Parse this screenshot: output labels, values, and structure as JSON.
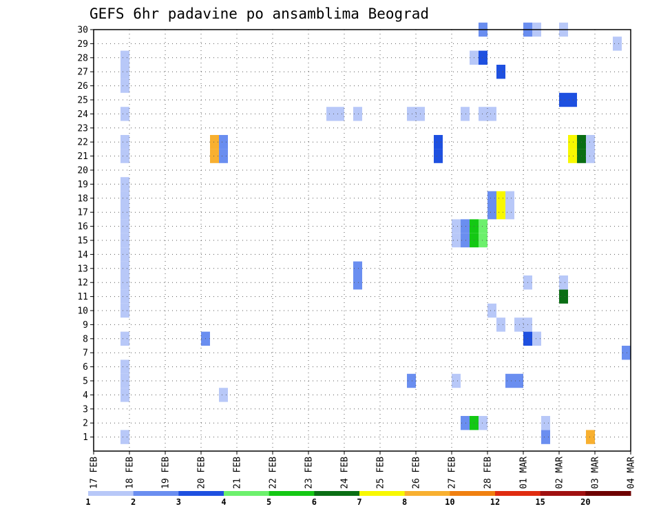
{
  "chart_data": {
    "type": "heatmap",
    "title": "GEFS 6hr padavine po ansamblima Beograd",
    "y_ticks": [
      "1",
      "2",
      "3",
      "4",
      "5",
      "6",
      "7",
      "8",
      "9",
      "10",
      "11",
      "12",
      "13",
      "14",
      "15",
      "16",
      "17",
      "18",
      "19",
      "20",
      "21",
      "22",
      "23",
      "24",
      "25",
      "26",
      "27",
      "28",
      "29",
      "30"
    ],
    "x_ticks": [
      "17 FEB",
      "18 FEB",
      "19 FEB",
      "20 FEB",
      "21 FEB",
      "22 FEB",
      "23 FEB",
      "24 FEB",
      "25 FEB",
      "26 FEB",
      "27 FEB",
      "28 FEB",
      "01 MAR",
      "02 MAR",
      "03 MAR",
      "04 MAR"
    ],
    "x_unit_note": "x values are days since 17 FEB, 6-hourly steps (0.25)",
    "ylim": [
      0,
      30
    ],
    "xlim": [
      0,
      15
    ],
    "grid": true,
    "colorbar": {
      "labels": [
        "1",
        "2",
        "3",
        "4",
        "5",
        "6",
        "7",
        "8",
        "10",
        "12",
        "15",
        "20"
      ],
      "colors": [
        "#b8c8f8",
        "#6a8ef0",
        "#1e50e0",
        "#6cf06c",
        "#14c814",
        "#0a6e14",
        "#f8f800",
        "#f8b030",
        "#f08010",
        "#e02c10",
        "#a01010",
        "#6e0000"
      ]
    },
    "cells": [
      {
        "member": 1,
        "x": 0.75,
        "c": 0
      },
      {
        "member": 1,
        "x": 12.5,
        "c": 1
      },
      {
        "member": 1,
        "x": 13.75,
        "c": 7
      },
      {
        "member": 2,
        "x": 10.25,
        "c": 1
      },
      {
        "member": 2,
        "x": 10.5,
        "c": 4
      },
      {
        "member": 2,
        "x": 10.75,
        "c": 0
      },
      {
        "member": 2,
        "x": 12.5,
        "c": 0
      },
      {
        "member": 4,
        "x": 0.75,
        "c": 0
      },
      {
        "member": 4,
        "x": 3.5,
        "c": 0
      },
      {
        "member": 5,
        "x": 0.75,
        "c": 0
      },
      {
        "member": 5,
        "x": 8.75,
        "c": 1
      },
      {
        "member": 5,
        "x": 10.0,
        "c": 0
      },
      {
        "member": 5,
        "x": 11.5,
        "c": 1
      },
      {
        "member": 5,
        "x": 11.75,
        "c": 1
      },
      {
        "member": 6,
        "x": 0.75,
        "c": 0
      },
      {
        "member": 7,
        "x": 14.75,
        "c": 1
      },
      {
        "member": 8,
        "x": 0.75,
        "c": 0
      },
      {
        "member": 8,
        "x": 3.0,
        "c": 1
      },
      {
        "member": 8,
        "x": 12.0,
        "c": 2
      },
      {
        "member": 8,
        "x": 12.25,
        "c": 0
      },
      {
        "member": 9,
        "x": 11.25,
        "c": 0
      },
      {
        "member": 9,
        "x": 11.75,
        "c": 0
      },
      {
        "member": 9,
        "x": 12.0,
        "c": 0
      },
      {
        "member": 10,
        "x": 0.75,
        "c": 0
      },
      {
        "member": 10,
        "x": 11.0,
        "c": 0
      },
      {
        "member": 11,
        "x": 0.75,
        "c": 0
      },
      {
        "member": 11,
        "x": 13.0,
        "c": 5
      },
      {
        "member": 12,
        "x": 0.75,
        "c": 0
      },
      {
        "member": 12,
        "x": 7.25,
        "c": 1
      },
      {
        "member": 12,
        "x": 12.0,
        "c": 0
      },
      {
        "member": 12,
        "x": 13.0,
        "c": 0
      },
      {
        "member": 13,
        "x": 0.75,
        "c": 0
      },
      {
        "member": 13,
        "x": 7.25,
        "c": 1
      },
      {
        "member": 14,
        "x": 0.75,
        "c": 0
      },
      {
        "member": 15,
        "x": 0.75,
        "c": 0
      },
      {
        "member": 15,
        "x": 10.0,
        "c": 0
      },
      {
        "member": 15,
        "x": 10.25,
        "c": 1
      },
      {
        "member": 15,
        "x": 10.5,
        "c": 4
      },
      {
        "member": 15,
        "x": 10.75,
        "c": 3
      },
      {
        "member": 16,
        "x": 0.75,
        "c": 0
      },
      {
        "member": 16,
        "x": 10.0,
        "c": 0
      },
      {
        "member": 16,
        "x": 10.25,
        "c": 1
      },
      {
        "member": 16,
        "x": 10.5,
        "c": 4
      },
      {
        "member": 16,
        "x": 10.75,
        "c": 3
      },
      {
        "member": 17,
        "x": 0.75,
        "c": 0
      },
      {
        "member": 17,
        "x": 11.0,
        "c": 1
      },
      {
        "member": 17,
        "x": 11.25,
        "c": 6
      },
      {
        "member": 17,
        "x": 11.5,
        "c": 0
      },
      {
        "member": 18,
        "x": 0.75,
        "c": 0
      },
      {
        "member": 18,
        "x": 11.0,
        "c": 1
      },
      {
        "member": 18,
        "x": 11.25,
        "c": 6
      },
      {
        "member": 18,
        "x": 11.5,
        "c": 0
      },
      {
        "member": 19,
        "x": 0.75,
        "c": 0
      },
      {
        "member": 21,
        "x": 0.75,
        "c": 0
      },
      {
        "member": 21,
        "x": 3.25,
        "c": 7
      },
      {
        "member": 21,
        "x": 3.5,
        "c": 1
      },
      {
        "member": 21,
        "x": 9.5,
        "c": 2
      },
      {
        "member": 21,
        "x": 13.25,
        "c": 6
      },
      {
        "member": 21,
        "x": 13.5,
        "c": 5
      },
      {
        "member": 21,
        "x": 13.75,
        "c": 0
      },
      {
        "member": 22,
        "x": 0.75,
        "c": 0
      },
      {
        "member": 22,
        "x": 3.25,
        "c": 7
      },
      {
        "member": 22,
        "x": 3.5,
        "c": 1
      },
      {
        "member": 22,
        "x": 9.5,
        "c": 2
      },
      {
        "member": 22,
        "x": 13.25,
        "c": 6
      },
      {
        "member": 22,
        "x": 13.5,
        "c": 5
      },
      {
        "member": 22,
        "x": 13.75,
        "c": 0
      },
      {
        "member": 24,
        "x": 0.75,
        "c": 0
      },
      {
        "member": 24,
        "x": 6.5,
        "c": 0
      },
      {
        "member": 24,
        "x": 6.75,
        "c": 0
      },
      {
        "member": 24,
        "x": 7.25,
        "c": 0
      },
      {
        "member": 24,
        "x": 8.75,
        "c": 0
      },
      {
        "member": 24,
        "x": 9.0,
        "c": 0
      },
      {
        "member": 24,
        "x": 10.25,
        "c": 0
      },
      {
        "member": 24,
        "x": 10.75,
        "c": 0
      },
      {
        "member": 24,
        "x": 11.0,
        "c": 0
      },
      {
        "member": 25,
        "x": 13.0,
        "c": 2
      },
      {
        "member": 25,
        "x": 13.25,
        "c": 2
      },
      {
        "member": 26,
        "x": 0.75,
        "c": 0
      },
      {
        "member": 27,
        "x": 0.75,
        "c": 0
      },
      {
        "member": 27,
        "x": 11.25,
        "c": 2
      },
      {
        "member": 28,
        "x": 0.75,
        "c": 0
      },
      {
        "member": 28,
        "x": 10.5,
        "c": 0
      },
      {
        "member": 28,
        "x": 10.75,
        "c": 2
      },
      {
        "member": 29,
        "x": 14.5,
        "c": 0
      },
      {
        "member": 30,
        "x": 10.75,
        "c": 1
      },
      {
        "member": 30,
        "x": 12.0,
        "c": 1
      },
      {
        "member": 30,
        "x": 12.25,
        "c": 0
      },
      {
        "member": 30,
        "x": 13.0,
        "c": 0
      }
    ]
  }
}
